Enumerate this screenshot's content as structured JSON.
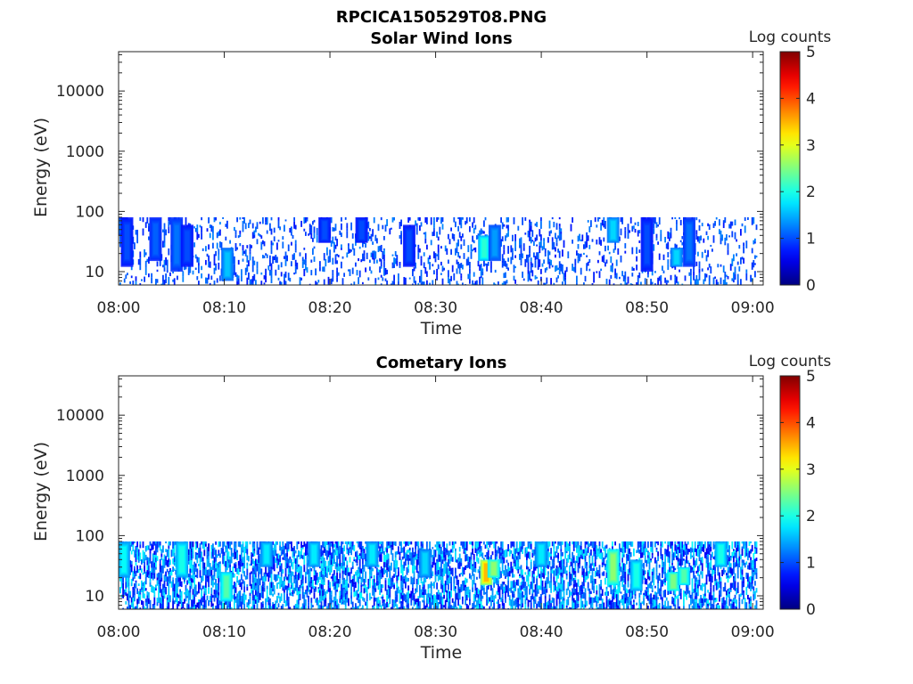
{
  "figure": {
    "title": "RPCICA150529T08.PNG"
  },
  "chart_data": [
    {
      "type": "heatmap",
      "title": "Solar Wind Ions",
      "xlabel": "Time",
      "ylabel": "Energy (eV)",
      "y_scale": "log",
      "ylim": [
        6,
        45000
      ],
      "x_tick_labels": [
        "08:00",
        "08:10",
        "08:20",
        "08:30",
        "08:40",
        "08:50",
        "09:00"
      ],
      "y_tick_labels": [
        "10",
        "100",
        "1000",
        "10000"
      ],
      "colorbar": {
        "label": "Log counts",
        "range": [
          0,
          5
        ],
        "tick_labels": [
          "0",
          "1",
          "2",
          "3",
          "4",
          "5"
        ],
        "colormap": "jet"
      },
      "x_range_minutes": [
        0,
        61
      ],
      "energy_band_ev": [
        6,
        80
      ],
      "blocks": [
        {
          "t": 0.3,
          "e_lo": 40,
          "e_hi": 80,
          "z": 1.2
        },
        {
          "t": 0.8,
          "e_lo": 12,
          "e_hi": 80,
          "z": 1.0
        },
        {
          "t": 3.5,
          "e_lo": 15,
          "e_hi": 80,
          "z": 1.1
        },
        {
          "t": 5.5,
          "e_lo": 10,
          "e_hi": 80,
          "z": 1.2
        },
        {
          "t": 6.5,
          "e_lo": 12,
          "e_hi": 60,
          "z": 1.0
        },
        {
          "t": 10.3,
          "e_lo": 7,
          "e_hi": 25,
          "z": 1.6
        },
        {
          "t": 19.5,
          "e_lo": 30,
          "e_hi": 80,
          "z": 1.0
        },
        {
          "t": 23,
          "e_lo": 30,
          "e_hi": 80,
          "z": 1.0
        },
        {
          "t": 27.5,
          "e_lo": 12,
          "e_hi": 60,
          "z": 1.0
        },
        {
          "t": 34.6,
          "e_lo": 15,
          "e_hi": 40,
          "z": 2.1
        },
        {
          "t": 35.6,
          "e_lo": 15,
          "e_hi": 60,
          "z": 1.4
        },
        {
          "t": 46.8,
          "e_lo": 30,
          "e_hi": 80,
          "z": 1.7
        },
        {
          "t": 50.0,
          "e_lo": 10,
          "e_hi": 80,
          "z": 1.0
        },
        {
          "t": 52.8,
          "e_lo": 12,
          "e_hi": 25,
          "z": 1.7
        },
        {
          "t": 54.0,
          "e_lo": 12,
          "e_hi": 80,
          "z": 1.2
        }
      ]
    },
    {
      "type": "heatmap",
      "title": "Cometary Ions",
      "xlabel": "Time",
      "ylabel": "Energy (eV)",
      "y_scale": "log",
      "ylim": [
        6,
        45000
      ],
      "x_tick_labels": [
        "08:00",
        "08:10",
        "08:20",
        "08:30",
        "08:40",
        "08:50",
        "09:00"
      ],
      "y_tick_labels": [
        "10",
        "100",
        "1000",
        "10000"
      ],
      "colorbar": {
        "label": "Log counts",
        "range": [
          0,
          5
        ],
        "tick_labels": [
          "0",
          "1",
          "2",
          "3",
          "4",
          "5"
        ],
        "colormap": "jet"
      },
      "x_range_minutes": [
        0,
        61
      ],
      "energy_band_ev": [
        6,
        80
      ],
      "blocks": [
        {
          "t": 0.5,
          "e_lo": 20,
          "e_hi": 80,
          "z": 1.9
        },
        {
          "t": 6.0,
          "e_lo": 20,
          "e_hi": 80,
          "z": 2.0
        },
        {
          "t": 10.2,
          "e_lo": 8,
          "e_hi": 25,
          "z": 2.3
        },
        {
          "t": 14.0,
          "e_lo": 30,
          "e_hi": 80,
          "z": 1.8
        },
        {
          "t": 18.5,
          "e_lo": 30,
          "e_hi": 80,
          "z": 1.8
        },
        {
          "t": 24.0,
          "e_lo": 30,
          "e_hi": 80,
          "z": 1.8
        },
        {
          "t": 29.0,
          "e_lo": 20,
          "e_hi": 60,
          "z": 1.7
        },
        {
          "t": 34.8,
          "e_lo": 15,
          "e_hi": 40,
          "z": 3.5
        },
        {
          "t": 35.5,
          "e_lo": 20,
          "e_hi": 40,
          "z": 2.6
        },
        {
          "t": 40.0,
          "e_lo": 30,
          "e_hi": 80,
          "z": 1.8
        },
        {
          "t": 46.8,
          "e_lo": 15,
          "e_hi": 60,
          "z": 2.6
        },
        {
          "t": 49.0,
          "e_lo": 12,
          "e_hi": 40,
          "z": 2.0
        },
        {
          "t": 52.5,
          "e_lo": 12,
          "e_hi": 25,
          "z": 2.5
        },
        {
          "t": 53.5,
          "e_lo": 15,
          "e_hi": 30,
          "z": 2.3
        },
        {
          "t": 57.0,
          "e_lo": 30,
          "e_hi": 80,
          "z": 2.0
        }
      ]
    }
  ]
}
